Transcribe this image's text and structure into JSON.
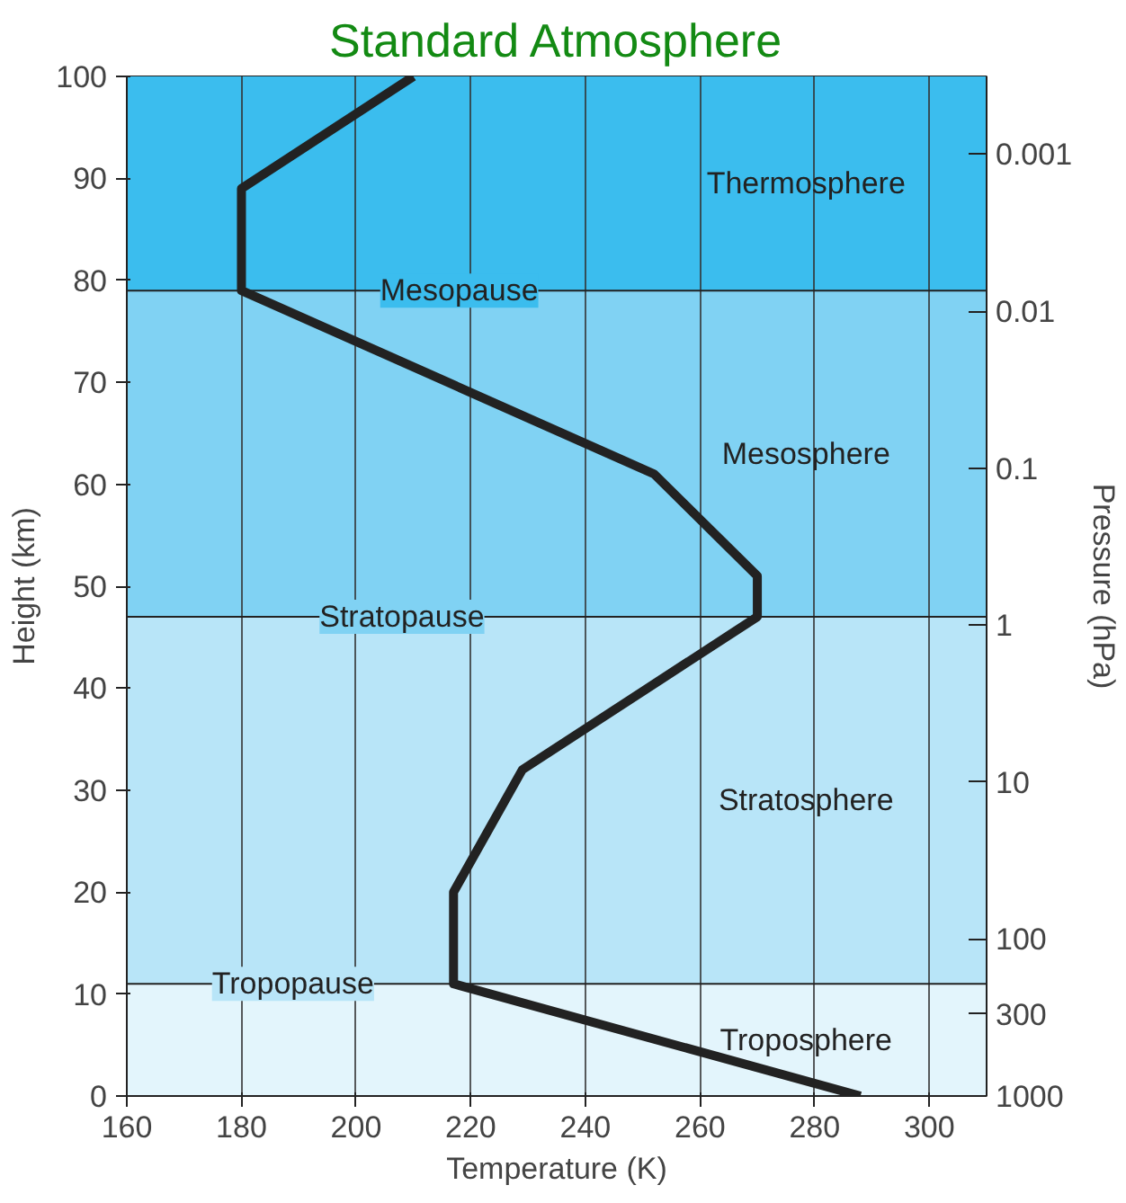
{
  "chart_data": {
    "type": "line",
    "title": "Standard Atmosphere",
    "xlabel": "Temperature (K)",
    "ylabel": "Height (km)",
    "y2label": "Pressure (hPa)",
    "x": [
      288,
      217,
      217,
      229,
      270,
      270,
      252,
      180,
      180,
      210
    ],
    "series": [
      {
        "color": "#222222",
        "values": [
          0,
          11,
          20,
          32,
          47,
          51,
          61,
          79,
          89,
          100
        ]
      }
    ],
    "xlim": [
      160,
      310
    ],
    "ylim": [
      0,
      100
    ],
    "xticks": [
      160,
      180,
      200,
      220,
      240,
      260,
      280,
      300
    ],
    "yticks": [
      0,
      10,
      20,
      30,
      40,
      50,
      60,
      70,
      80,
      90,
      100
    ],
    "y2lim": [
      1000,
      0.00032
    ],
    "y2ticks": [
      0.001,
      0.01,
      0.1,
      1,
      10,
      100,
      300,
      1000
    ],
    "log": "y2",
    "bands": [
      {
        "axis": "y",
        "from": 79,
        "to": 100,
        "label": "Thermosphere",
        "color": "#3bbdee"
      },
      {
        "axis": "y",
        "from": 47,
        "to": 79,
        "label": "Mesosphere",
        "color": "#80d2f3"
      },
      {
        "axis": "y",
        "from": 11,
        "to": 47,
        "label": "Stratosphere",
        "color": "#b8e5f8"
      },
      {
        "axis": "y",
        "from": 0,
        "to": 11,
        "label": "Troposphere",
        "color": "#e3f5fc"
      }
    ],
    "ref_lines": [
      {
        "axis": "y",
        "value": 79,
        "color": "#222222"
      },
      {
        "axis": "y",
        "value": 47,
        "color": "#222222"
      },
      {
        "axis": "y",
        "value": 11,
        "color": "#222222"
      }
    ],
    "annotations": [
      {
        "text": "Mesopause",
        "x": 218,
        "y": 79
      },
      {
        "text": "Stratopause",
        "x": 208,
        "y": 47
      },
      {
        "text": "Tropopause",
        "x": 189,
        "y": 11
      }
    ],
    "grid": "x",
    "marker": "none",
    "line_style": "solid"
  }
}
